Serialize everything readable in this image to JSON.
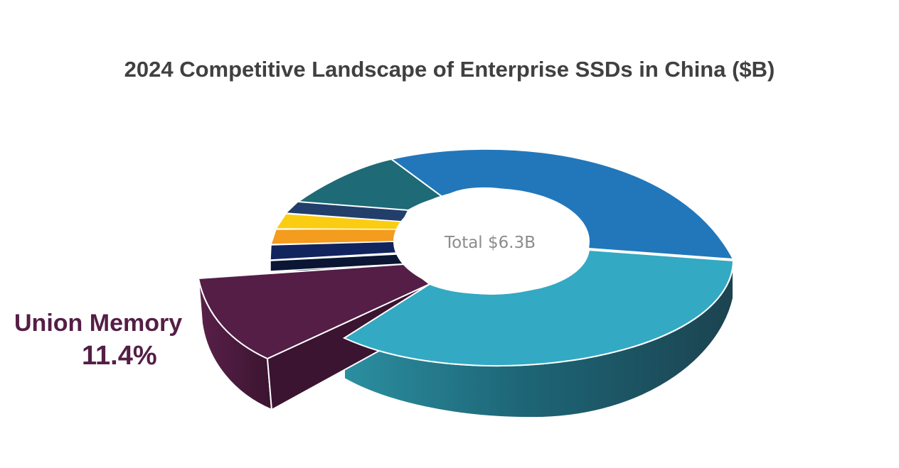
{
  "title": "2024 Competitive Landscape of Enterprise SSDs in China ($B)",
  "center_label": "Total $6.3B",
  "callout": {
    "name": "Union Memory",
    "percent": "11.4%"
  },
  "chart_data": {
    "type": "pie",
    "style": "3d-donut, one slice exploded",
    "title": "2024 Competitive Landscape of Enterprise SSDs in China ($B)",
    "total_label": "Total $6.3B",
    "slices": [
      {
        "share": 31.0,
        "color": "#2277bb"
      },
      {
        "share": 40.0,
        "color": "#33a9c3",
        "side_color": "#1e5866"
      },
      {
        "label": "Union Memory",
        "share": 11.4,
        "color": "#541e46",
        "side_color": "#3b1431",
        "exploded": true
      },
      {
        "share": 1.6,
        "color": "#0a1633"
      },
      {
        "share": 2.0,
        "color": "#12245e"
      },
      {
        "share": 2.0,
        "color": "#f39c1e"
      },
      {
        "share": 2.0,
        "color": "#fbcd12"
      },
      {
        "share": 1.7,
        "color": "#213f6a"
      },
      {
        "share": 8.3,
        "color": "#1e6a76"
      }
    ]
  }
}
